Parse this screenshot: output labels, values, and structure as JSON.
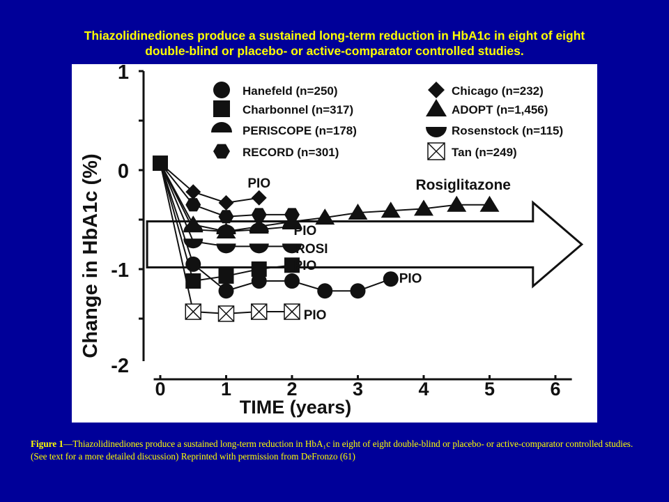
{
  "slide": {
    "title_line1": "Thiazolidinediones produce a sustained long-term reduction in HbA1c in eight of eight",
    "title_line2": "double-blind or placebo- or active-comparator controlled studies."
  },
  "caption": {
    "label": "Figure 1",
    "text": "—Thiazolidinediones produce a sustained long-term reduction in HbA₁c in eight of eight double-blind or placebo- or active-comparator controlled studies. (See text for a more detailed discussion) Reprinted with permission from DeFronzo (61)"
  },
  "colors": {
    "background": "#000099",
    "title_text": "#FFFF00",
    "panel": "#FFFFFF",
    "ink": "#111111"
  },
  "chart_data": {
    "type": "line",
    "xlabel": "TIME (years)",
    "ylabel": "Change in HbA1c (%)",
    "xlim": [
      0,
      6
    ],
    "ylim": [
      -2,
      1
    ],
    "x_ticks": [
      "0",
      "1",
      "2",
      "3",
      "4",
      "5",
      "6"
    ],
    "y_ticks": [
      "1",
      "0",
      "-1",
      "-2"
    ],
    "legend_position": "top",
    "annotations": [
      {
        "text": "PIO",
        "x": 1.5,
        "y": -0.12
      },
      {
        "text": "Rosiglitazone",
        "x": 4.6,
        "y": -0.14
      },
      {
        "text": "PIO",
        "x": 2.2,
        "y": -0.6
      },
      {
        "text": "ROSI",
        "x": 2.3,
        "y": -0.78
      },
      {
        "text": "PIO",
        "x": 2.2,
        "y": -0.95
      },
      {
        "text": "PIO",
        "x": 3.8,
        "y": -1.08
      },
      {
        "text": "PIO",
        "x": 2.35,
        "y": -1.45
      }
    ],
    "arrow": {
      "from_x": -0.2,
      "to_x": 6.4,
      "y": -0.75
    },
    "series": [
      {
        "name": "Hanefeld (n=250)",
        "marker": "circle",
        "x": [
          0,
          0.5,
          1,
          1.5,
          2,
          2.5,
          3,
          3.5
        ],
        "y": [
          0.07,
          -0.95,
          -1.22,
          -1.12,
          -1.12,
          -1.22,
          -1.22,
          -1.1
        ]
      },
      {
        "name": "Charbonnel (n=317)",
        "marker": "square",
        "x": [
          0,
          0.5,
          1,
          1.5,
          2
        ],
        "y": [
          0.07,
          -1.12,
          -1.07,
          -1.0,
          -0.96
        ]
      },
      {
        "name": "PERISCOPE (n=178)",
        "marker": "half-circle-top",
        "x": [
          0,
          0.5,
          1,
          1.5,
          2
        ],
        "y": [
          0.07,
          -0.6,
          -0.62,
          -0.6,
          -0.57
        ]
      },
      {
        "name": "RECORD (n=301)",
        "marker": "hexagon",
        "x": [
          0,
          0.5,
          1,
          1.5,
          2
        ],
        "y": [
          0.07,
          -0.35,
          -0.47,
          -0.45,
          -0.45
        ]
      },
      {
        "name": "Chicago (n=232)",
        "marker": "diamond",
        "x": [
          0,
          0.5,
          1,
          1.5
        ],
        "y": [
          0.07,
          -0.22,
          -0.33,
          -0.28
        ]
      },
      {
        "name": "ADOPT (n=1,456)",
        "marker": "triangle",
        "x": [
          0,
          0.5,
          1,
          1.5,
          2,
          2.5,
          3,
          3.5,
          4,
          4.5,
          5
        ],
        "y": [
          0.07,
          -0.55,
          -0.62,
          -0.57,
          -0.52,
          -0.48,
          -0.43,
          -0.41,
          -0.39,
          -0.35,
          -0.35
        ]
      },
      {
        "name": "Rosenstock (n=115)",
        "marker": "half-circle-bottom",
        "x": [
          0,
          0.5,
          1,
          1.5,
          2
        ],
        "y": [
          0.07,
          -0.72,
          -0.77,
          -0.77,
          -0.77
        ]
      },
      {
        "name": "Tan (n=249)",
        "marker": "crossed-box",
        "x": [
          0,
          0.5,
          1,
          1.5,
          2
        ],
        "y": [
          0.07,
          -1.43,
          -1.45,
          -1.43,
          -1.43
        ]
      }
    ]
  }
}
